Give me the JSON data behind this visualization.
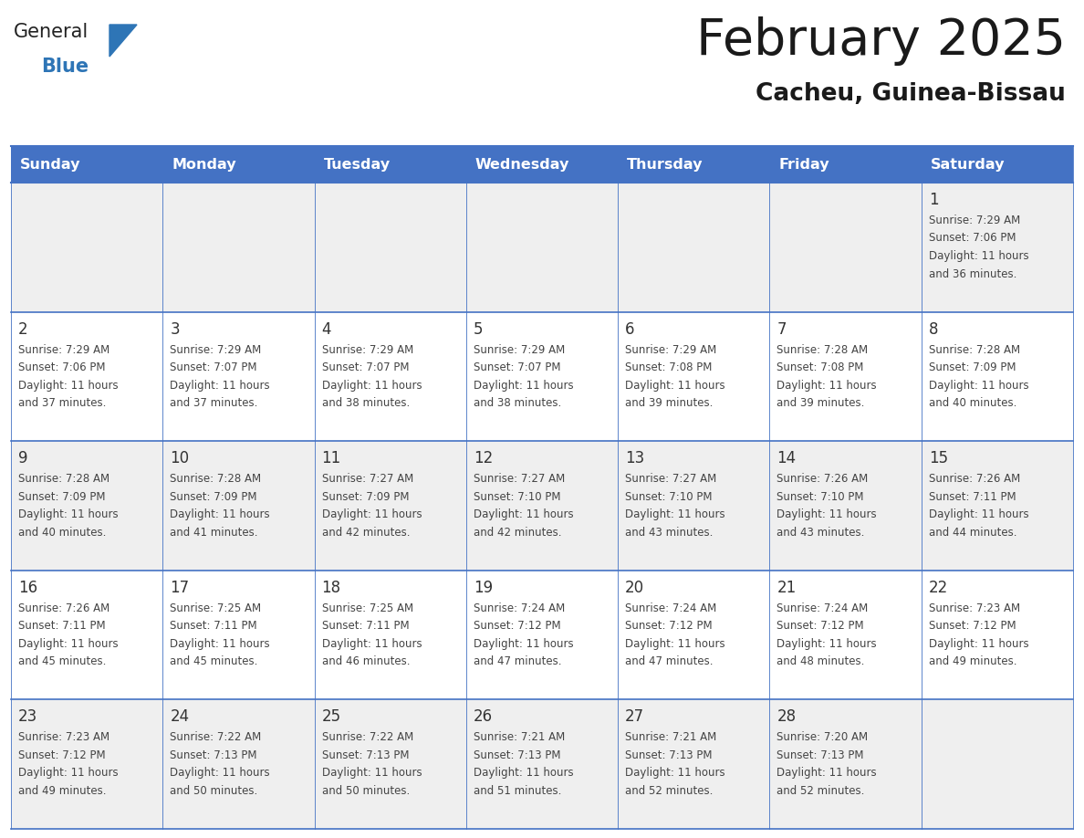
{
  "title": "February 2025",
  "subtitle": "Cacheu, Guinea-Bissau",
  "days_of_week": [
    "Sunday",
    "Monday",
    "Tuesday",
    "Wednesday",
    "Thursday",
    "Friday",
    "Saturday"
  ],
  "header_bg": "#4472C4",
  "header_text": "#FFFFFF",
  "cell_bg_odd": "#EFEFEF",
  "cell_bg_even": "#FFFFFF",
  "border_color": "#4472C4",
  "text_color": "#444444",
  "day_number_color": "#333333",
  "calendar_data": [
    [
      null,
      null,
      null,
      null,
      null,
      null,
      {
        "day": 1,
        "sunrise": "7:29 AM",
        "sunset": "7:06 PM",
        "daylight_line1": "11 hours",
        "daylight_line2": "and 36 minutes."
      }
    ],
    [
      {
        "day": 2,
        "sunrise": "7:29 AM",
        "sunset": "7:06 PM",
        "daylight_line1": "11 hours",
        "daylight_line2": "and 37 minutes."
      },
      {
        "day": 3,
        "sunrise": "7:29 AM",
        "sunset": "7:07 PM",
        "daylight_line1": "11 hours",
        "daylight_line2": "and 37 minutes."
      },
      {
        "day": 4,
        "sunrise": "7:29 AM",
        "sunset": "7:07 PM",
        "daylight_line1": "11 hours",
        "daylight_line2": "and 38 minutes."
      },
      {
        "day": 5,
        "sunrise": "7:29 AM",
        "sunset": "7:07 PM",
        "daylight_line1": "11 hours",
        "daylight_line2": "and 38 minutes."
      },
      {
        "day": 6,
        "sunrise": "7:29 AM",
        "sunset": "7:08 PM",
        "daylight_line1": "11 hours",
        "daylight_line2": "and 39 minutes."
      },
      {
        "day": 7,
        "sunrise": "7:28 AM",
        "sunset": "7:08 PM",
        "daylight_line1": "11 hours",
        "daylight_line2": "and 39 minutes."
      },
      {
        "day": 8,
        "sunrise": "7:28 AM",
        "sunset": "7:09 PM",
        "daylight_line1": "11 hours",
        "daylight_line2": "and 40 minutes."
      }
    ],
    [
      {
        "day": 9,
        "sunrise": "7:28 AM",
        "sunset": "7:09 PM",
        "daylight_line1": "11 hours",
        "daylight_line2": "and 40 minutes."
      },
      {
        "day": 10,
        "sunrise": "7:28 AM",
        "sunset": "7:09 PM",
        "daylight_line1": "11 hours",
        "daylight_line2": "and 41 minutes."
      },
      {
        "day": 11,
        "sunrise": "7:27 AM",
        "sunset": "7:09 PM",
        "daylight_line1": "11 hours",
        "daylight_line2": "and 42 minutes."
      },
      {
        "day": 12,
        "sunrise": "7:27 AM",
        "sunset": "7:10 PM",
        "daylight_line1": "11 hours",
        "daylight_line2": "and 42 minutes."
      },
      {
        "day": 13,
        "sunrise": "7:27 AM",
        "sunset": "7:10 PM",
        "daylight_line1": "11 hours",
        "daylight_line2": "and 43 minutes."
      },
      {
        "day": 14,
        "sunrise": "7:26 AM",
        "sunset": "7:10 PM",
        "daylight_line1": "11 hours",
        "daylight_line2": "and 43 minutes."
      },
      {
        "day": 15,
        "sunrise": "7:26 AM",
        "sunset": "7:11 PM",
        "daylight_line1": "11 hours",
        "daylight_line2": "and 44 minutes."
      }
    ],
    [
      {
        "day": 16,
        "sunrise": "7:26 AM",
        "sunset": "7:11 PM",
        "daylight_line1": "11 hours",
        "daylight_line2": "and 45 minutes."
      },
      {
        "day": 17,
        "sunrise": "7:25 AM",
        "sunset": "7:11 PM",
        "daylight_line1": "11 hours",
        "daylight_line2": "and 45 minutes."
      },
      {
        "day": 18,
        "sunrise": "7:25 AM",
        "sunset": "7:11 PM",
        "daylight_line1": "11 hours",
        "daylight_line2": "and 46 minutes."
      },
      {
        "day": 19,
        "sunrise": "7:24 AM",
        "sunset": "7:12 PM",
        "daylight_line1": "11 hours",
        "daylight_line2": "and 47 minutes."
      },
      {
        "day": 20,
        "sunrise": "7:24 AM",
        "sunset": "7:12 PM",
        "daylight_line1": "11 hours",
        "daylight_line2": "and 47 minutes."
      },
      {
        "day": 21,
        "sunrise": "7:24 AM",
        "sunset": "7:12 PM",
        "daylight_line1": "11 hours",
        "daylight_line2": "and 48 minutes."
      },
      {
        "day": 22,
        "sunrise": "7:23 AM",
        "sunset": "7:12 PM",
        "daylight_line1": "11 hours",
        "daylight_line2": "and 49 minutes."
      }
    ],
    [
      {
        "day": 23,
        "sunrise": "7:23 AM",
        "sunset": "7:12 PM",
        "daylight_line1": "11 hours",
        "daylight_line2": "and 49 minutes."
      },
      {
        "day": 24,
        "sunrise": "7:22 AM",
        "sunset": "7:13 PM",
        "daylight_line1": "11 hours",
        "daylight_line2": "and 50 minutes."
      },
      {
        "day": 25,
        "sunrise": "7:22 AM",
        "sunset": "7:13 PM",
        "daylight_line1": "11 hours",
        "daylight_line2": "and 50 minutes."
      },
      {
        "day": 26,
        "sunrise": "7:21 AM",
        "sunset": "7:13 PM",
        "daylight_line1": "11 hours",
        "daylight_line2": "and 51 minutes."
      },
      {
        "day": 27,
        "sunrise": "7:21 AM",
        "sunset": "7:13 PM",
        "daylight_line1": "11 hours",
        "daylight_line2": "and 52 minutes."
      },
      {
        "day": 28,
        "sunrise": "7:20 AM",
        "sunset": "7:13 PM",
        "daylight_line1": "11 hours",
        "daylight_line2": "and 52 minutes."
      },
      null
    ]
  ],
  "logo_text_general": "General",
  "logo_text_blue": "Blue",
  "logo_color_general": "#222222",
  "logo_color_blue": "#2E75B6",
  "fig_width": 11.88,
  "fig_height": 9.18,
  "dpi": 100
}
